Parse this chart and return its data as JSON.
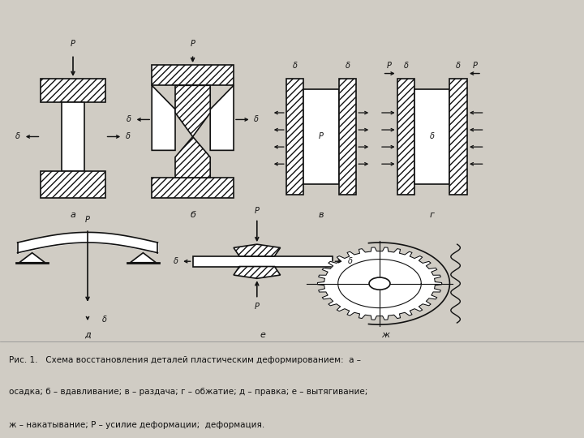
{
  "bg_color": "#d0ccc4",
  "panel_bg": "#e4e0d8",
  "line_color": "#111111",
  "caption_line1": "Рис. 1.   Схема восстановления деталей пластическим деформированием:  а –",
  "caption_line2": "осадка; б – вдавливание; в – раздача; г – обжатие; д – правка; е – вытягивание;",
  "caption_line3": "ж – накатывание; Р – усилие деформации;  деформация."
}
